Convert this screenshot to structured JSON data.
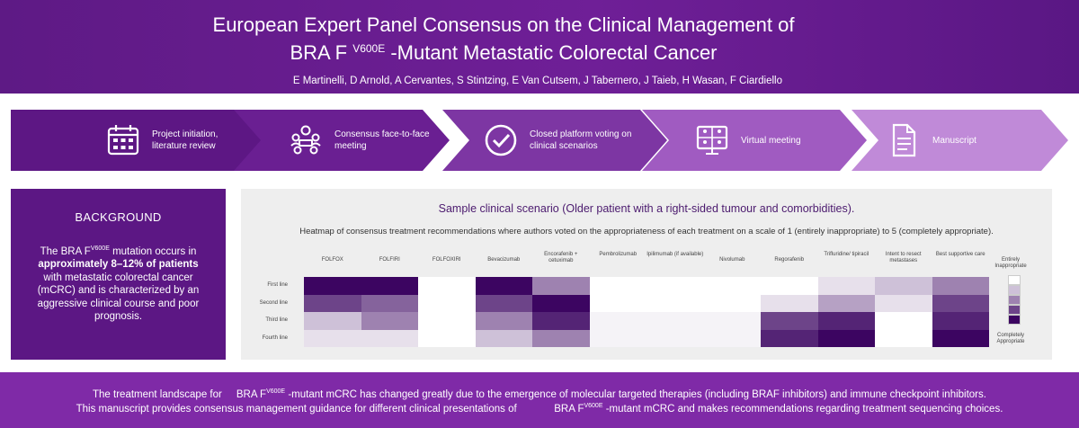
{
  "header": {
    "title_line1": "European Expert Panel Consensus on the Clinical Management of",
    "title_line2_pre": "BRA F",
    "title_line2_sup": "V600E",
    "title_line2_post": "-Mutant Metastatic Colorectal Cancer",
    "authors": "E Martinelli, D Arnold, A Cervantes, S Stintzing, E Van Cutsem, J Tabernero, J Taieb, H Wasan, F Ciardiello"
  },
  "process": {
    "steps": [
      {
        "label": "Project initiation, literature review",
        "icon": "calendar-icon"
      },
      {
        "label": "Consensus face-to-face meeting",
        "icon": "meeting-icon"
      },
      {
        "label": "Closed platform voting on clinical scenarios",
        "icon": "check-circle-icon"
      },
      {
        "label": "Virtual meeting",
        "icon": "video-call-icon"
      },
      {
        "label": "Manuscript",
        "icon": "document-icon"
      }
    ]
  },
  "background": {
    "title": "BACKGROUND",
    "text_pre": "The BRA F",
    "text_sup": "V600E",
    "text_mid": " mutation occurs in",
    "text_bold": "approximately 8–12% of patients",
    "text_post": "with metastatic colorectal cancer (mCRC) and is characterized by an aggressive clinical course and poor prognosis."
  },
  "scenario": {
    "title": "Sample clinical scenario (Older patient with a right-sided tumour and comorbidities).",
    "subtitle": "Heatmap of consensus treatment recommendations where authors voted on the appropriateness of each treatment on a scale of 1 (entirely inappropriate) to 5 (completely appropriate)."
  },
  "chart_data": {
    "type": "heatmap",
    "columns": [
      "FOLFOX",
      "FOLFIRI",
      "FOLFOXIRI",
      "Bevacizumab",
      "Encorafenib + cetuximab",
      "Pembrolizumab",
      "Ipilimumab (if available)",
      "Nivolumab",
      "Regorafenib",
      "Trifluridine/ tipiracil",
      "Intent to resect metastases",
      "Best supportive care"
    ],
    "rows": [
      "First line",
      "Second line",
      "Third line",
      "Fourth line"
    ],
    "values": [
      [
        5,
        5,
        1,
        5,
        3,
        1,
        1,
        1,
        1,
        1.5,
        2,
        3
      ],
      [
        4,
        3.5,
        1,
        4,
        5,
        1,
        1,
        1,
        1.5,
        2.5,
        1.5,
        4
      ],
      [
        2,
        3,
        1,
        3,
        4.5,
        1.2,
        1.2,
        1.2,
        4,
        4.5,
        1,
        4.5
      ],
      [
        1.5,
        1.5,
        1,
        2,
        3,
        1.2,
        1.2,
        1.2,
        4.5,
        5,
        1,
        5
      ]
    ],
    "scale": [
      1,
      5
    ],
    "legend_top": "Entirely Inappropriate",
    "legend_bottom": "Completely Appropriate",
    "color_low": "#ffffff",
    "color_high": "#3c0561"
  },
  "bottom": {
    "line1_pre": "The treatment landscape for",
    "line1_gene": "BRA F",
    "line1_sup": "V600E",
    "line1_post": "-mutant mCRC has changed greatly due to the emergence of molecular targeted therapies (including BRAF inhibitors) and immune checkpoint inhibitors.",
    "line2_pre": "This manuscript provides consensus management guidance for different clinical presentations of",
    "line2_gene": "BRA F",
    "line2_sup": "V600E",
    "line2_post": "-mutant mCRC and makes recommendations regarding treatment sequencing choices."
  }
}
